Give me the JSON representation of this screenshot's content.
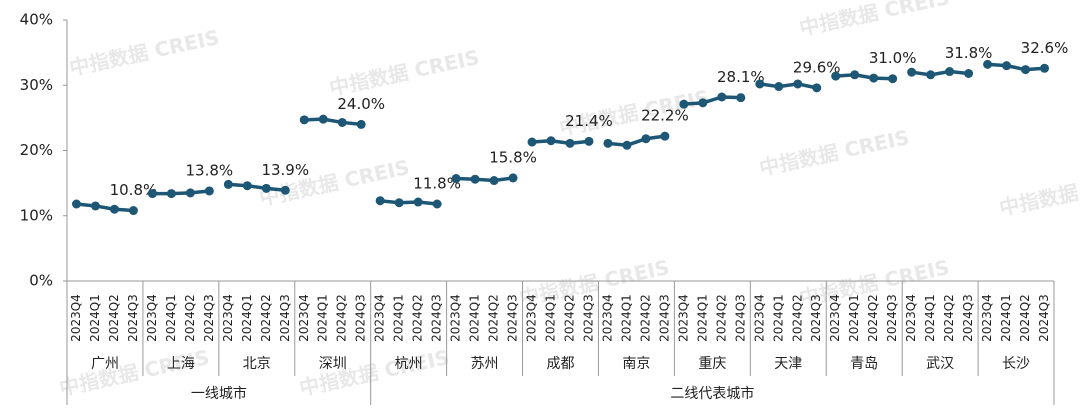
{
  "chart_data": {
    "type": "line",
    "color": "#1d5775",
    "watermark": "中指数据 CREIS",
    "categories": [
      "2023Q4",
      "2024Q1",
      "2024Q2",
      "2024Q3"
    ],
    "ylim": [
      0,
      40
    ],
    "yticks": [
      {
        "value": 0,
        "label": "0%"
      },
      {
        "value": 10,
        "label": "10%"
      },
      {
        "value": 20,
        "label": "20%"
      },
      {
        "value": 30,
        "label": "30%"
      },
      {
        "value": 40,
        "label": "40%"
      }
    ],
    "tiers": [
      {
        "name": "一线城市",
        "series": [
          {
            "name": "广州",
            "values": [
              11.8,
              11.5,
              11.0,
              10.8
            ],
            "value_labels": [
              null,
              null,
              null,
              "10.8%"
            ]
          },
          {
            "name": "上海",
            "values": [
              13.4,
              13.4,
              13.5,
              13.8
            ],
            "value_labels": [
              null,
              null,
              null,
              "13.8%"
            ]
          },
          {
            "name": "北京",
            "values": [
              14.8,
              14.6,
              14.2,
              13.9
            ],
            "value_labels": [
              null,
              null,
              null,
              "13.9%"
            ]
          },
          {
            "name": "深圳",
            "values": [
              24.7,
              24.8,
              24.3,
              24.0
            ],
            "value_labels": [
              null,
              null,
              null,
              "24.0%"
            ]
          }
        ]
      },
      {
        "name": "二线代表城市",
        "series": [
          {
            "name": "杭州",
            "values": [
              12.3,
              12.0,
              12.1,
              11.8
            ],
            "value_labels": [
              null,
              null,
              null,
              "11.8%"
            ]
          },
          {
            "name": "苏州",
            "values": [
              15.7,
              15.6,
              15.4,
              15.8
            ],
            "value_labels": [
              null,
              null,
              null,
              "15.8%"
            ]
          },
          {
            "name": "成都",
            "values": [
              21.3,
              21.5,
              21.1,
              21.4
            ],
            "value_labels": [
              null,
              null,
              null,
              "21.4%"
            ]
          },
          {
            "name": "南京",
            "values": [
              21.1,
              20.8,
              21.8,
              22.2
            ],
            "value_labels": [
              null,
              null,
              null,
              "22.2%"
            ]
          },
          {
            "name": "重庆",
            "values": [
              27.1,
              27.3,
              28.2,
              28.1
            ],
            "value_labels": [
              null,
              null,
              null,
              "28.1%"
            ]
          },
          {
            "name": "天津",
            "values": [
              30.2,
              29.8,
              30.2,
              29.6
            ],
            "value_labels": [
              null,
              null,
              null,
              "29.6%"
            ]
          },
          {
            "name": "青岛",
            "values": [
              31.4,
              31.6,
              31.1,
              31.0
            ],
            "value_labels": [
              null,
              null,
              null,
              "31.0%"
            ]
          },
          {
            "name": "武汉",
            "values": [
              32.0,
              31.6,
              32.1,
              31.8
            ],
            "value_labels": [
              null,
              null,
              null,
              "31.8%"
            ]
          },
          {
            "name": "长沙",
            "values": [
              33.2,
              33.0,
              32.4,
              32.6
            ],
            "value_labels": [
              null,
              null,
              null,
              "32.6%"
            ]
          }
        ]
      }
    ]
  }
}
